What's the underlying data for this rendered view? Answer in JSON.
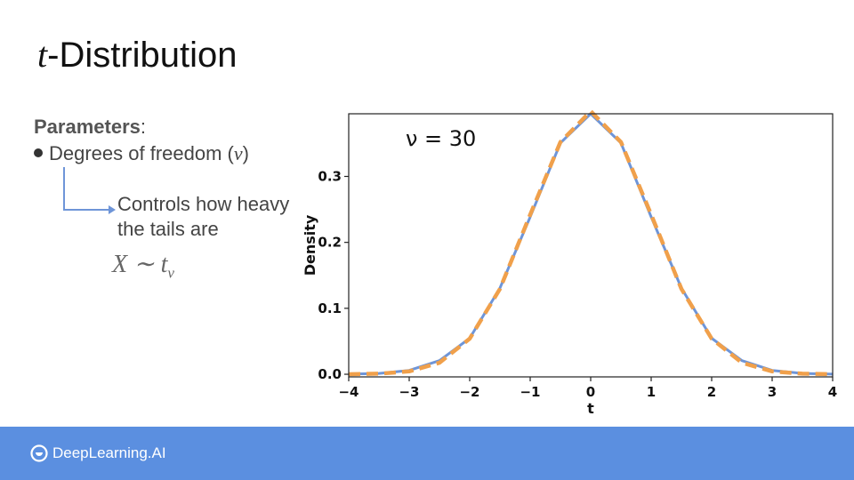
{
  "slide": {
    "title_var": "t",
    "title_rest": "-Distribution",
    "params_label": "Parameters",
    "params_colon": ":",
    "bullet_text": "Degrees of freedom (",
    "bullet_symbol": "ν",
    "bullet_close": ")",
    "note_line1": "Controls how heavy",
    "note_line2": "the tails are",
    "formula_main": "X ∼ t",
    "formula_sub": "ν"
  },
  "footer": {
    "brand": "DeepLearning.AI",
    "color": "#5b8fe0",
    "logo_icon": "deeplearning-logo-icon"
  },
  "chart_data": {
    "type": "line",
    "xlabel": "t",
    "ylabel": "Density",
    "xlim": [
      -4,
      4
    ],
    "ylim": [
      -0.004,
      0.395
    ],
    "xticks": [
      -4,
      -3,
      -2,
      -1,
      0,
      1,
      2,
      3,
      4
    ],
    "xtick_labels": [
      "−4",
      "−3",
      "−2",
      "−1",
      "0",
      "1",
      "2",
      "3",
      "4"
    ],
    "yticks": [
      0.0,
      0.1,
      0.2,
      0.3
    ],
    "ytick_labels": [
      "0.0",
      "0.1",
      "0.2",
      "0.3"
    ],
    "annotation": "ν = 30",
    "grid": false,
    "series": [
      {
        "style": "solid",
        "color": "#6e95d8",
        "x": [
          -4,
          -3.5,
          -3,
          -2.5,
          -2,
          -1.5,
          -1,
          -0.5,
          0,
          0.5,
          1,
          1.5,
          2,
          2.5,
          3,
          3.5,
          4
        ],
        "y": [
          0.0002,
          0.0012,
          0.0058,
          0.0207,
          0.0547,
          0.1306,
          0.2385,
          0.3508,
          0.395,
          0.3508,
          0.2385,
          0.1306,
          0.0547,
          0.0207,
          0.0058,
          0.0012,
          0.0002
        ]
      },
      {
        "style": "dashed",
        "color": "#f0a04b",
        "x": [
          -4,
          -3.5,
          -3,
          -2.5,
          -2,
          -1.5,
          -1,
          -0.5,
          0,
          0.5,
          1,
          1.5,
          2,
          2.5,
          3,
          3.5,
          4
        ],
        "y": [
          0.0001,
          0.0009,
          0.0044,
          0.0175,
          0.054,
          0.1295,
          0.242,
          0.3521,
          0.3989,
          0.3521,
          0.242,
          0.1295,
          0.054,
          0.0175,
          0.0044,
          0.0009,
          0.0001
        ]
      }
    ]
  }
}
